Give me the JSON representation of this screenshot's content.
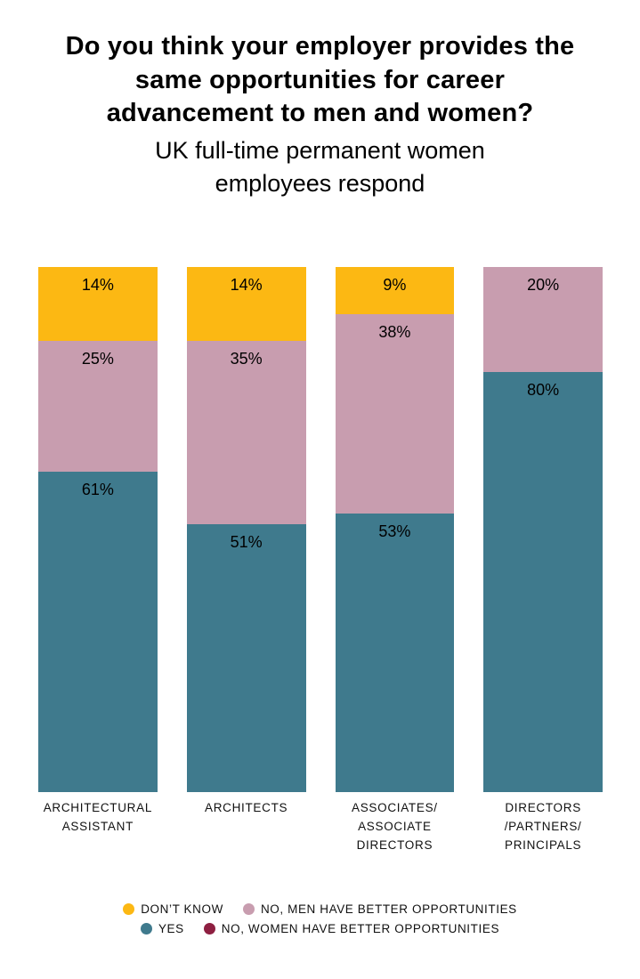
{
  "header": {
    "title": "Do you think your employer provides the same opportunities for career advancement to men and women?",
    "subtitle": "UK full-time permanent women employees respond"
  },
  "chart_data": {
    "type": "bar",
    "stacked": true,
    "title": "Do you think your employer provides the same opportunities for career advancement to men and women?",
    "subtitle": "UK full-time permanent women employees respond",
    "categories": [
      "ARCHITECTURAL\nASSISTANT",
      "ARCHITECTS",
      "ASSOCIATES/\nASSOCIATE\nDIRECTORS",
      "DIRECTORS\n/PARTNERS/\nPRINCIPALS"
    ],
    "series": [
      {
        "name": "DON’T KNOW",
        "color": "#FCB813",
        "values": [
          14,
          14,
          9,
          0
        ]
      },
      {
        "name": "NO, MEN HAVE BETTER OPPORTUNITIES",
        "color": "#C89DAF",
        "values": [
          25,
          35,
          38,
          20
        ]
      },
      {
        "name": "YES",
        "color": "#3F7A8D",
        "values": [
          61,
          51,
          53,
          80
        ]
      },
      {
        "name": "NO, WOMEN HAVE BETTER OPPORTUNITIES",
        "color": "#8E1F41",
        "values": [
          0,
          0,
          0,
          0
        ]
      }
    ],
    "value_suffix": "%",
    "ylim": [
      0,
      100
    ],
    "grid": false,
    "legend_position": "bottom",
    "legend_rows": [
      [
        "DON’T KNOW",
        "NO, MEN HAVE BETTER OPPORTUNITIES"
      ],
      [
        "YES",
        "NO, WOMEN HAVE BETTER OPPORTUNITIES"
      ]
    ]
  }
}
